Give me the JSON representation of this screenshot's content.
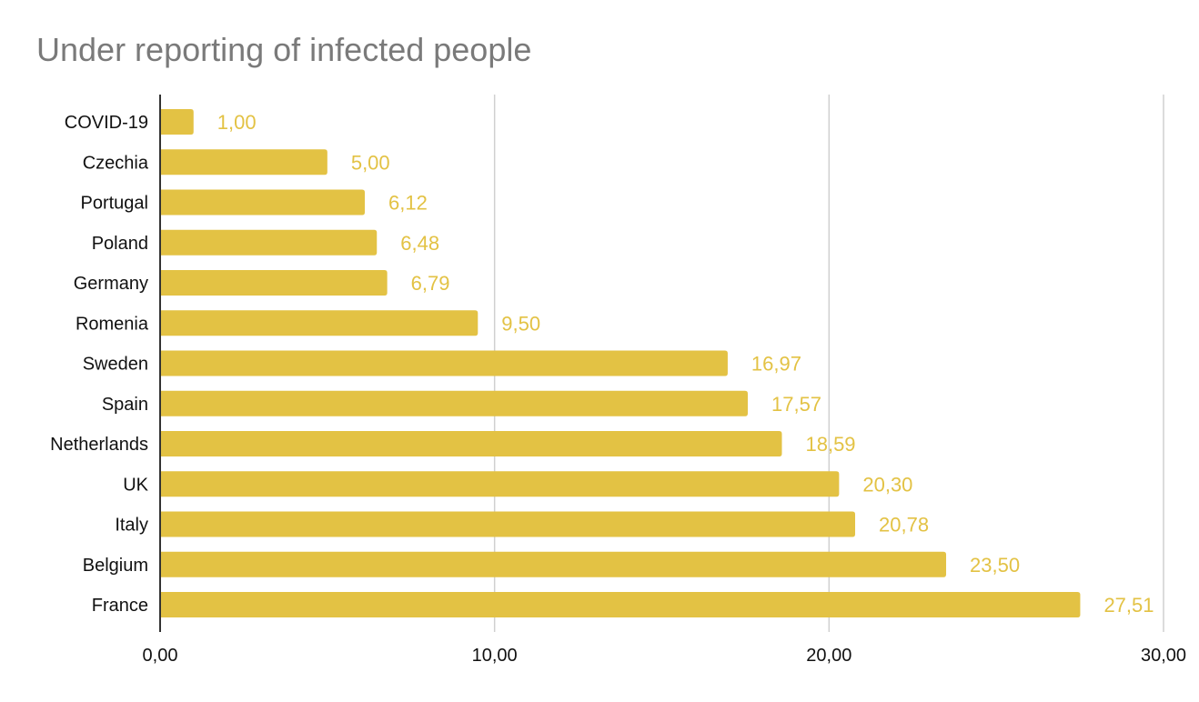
{
  "chart_data": {
    "type": "bar",
    "orientation": "horizontal",
    "title": "Under reporting of infected people",
    "xlabel": "",
    "ylabel": "",
    "categories": [
      "COVID-19",
      "Czechia",
      "Portugal",
      "Poland",
      "Germany",
      "Romenia",
      "Sweden",
      "Spain",
      "Netherlands",
      "UK",
      "Italy",
      "Belgium",
      "France"
    ],
    "values": [
      1.0,
      5.0,
      6.12,
      6.48,
      6.79,
      9.5,
      16.97,
      17.57,
      18.59,
      20.3,
      20.78,
      23.5,
      27.51
    ],
    "value_labels": [
      "1,00",
      "5,00",
      "6,12",
      "6,48",
      "6,79",
      "9,50",
      "16,97",
      "17,57",
      "18,59",
      "20,30",
      "20,78",
      "23,50",
      "27,51"
    ],
    "xlim": [
      0,
      30
    ],
    "xticks": [
      0,
      10,
      20,
      30
    ],
    "xtick_labels": [
      "0,00",
      "10,00",
      "20,00",
      "30,00"
    ],
    "grid": true,
    "legend": "none",
    "bar_color": "#e3c244",
    "label_color": "#e3c244"
  }
}
